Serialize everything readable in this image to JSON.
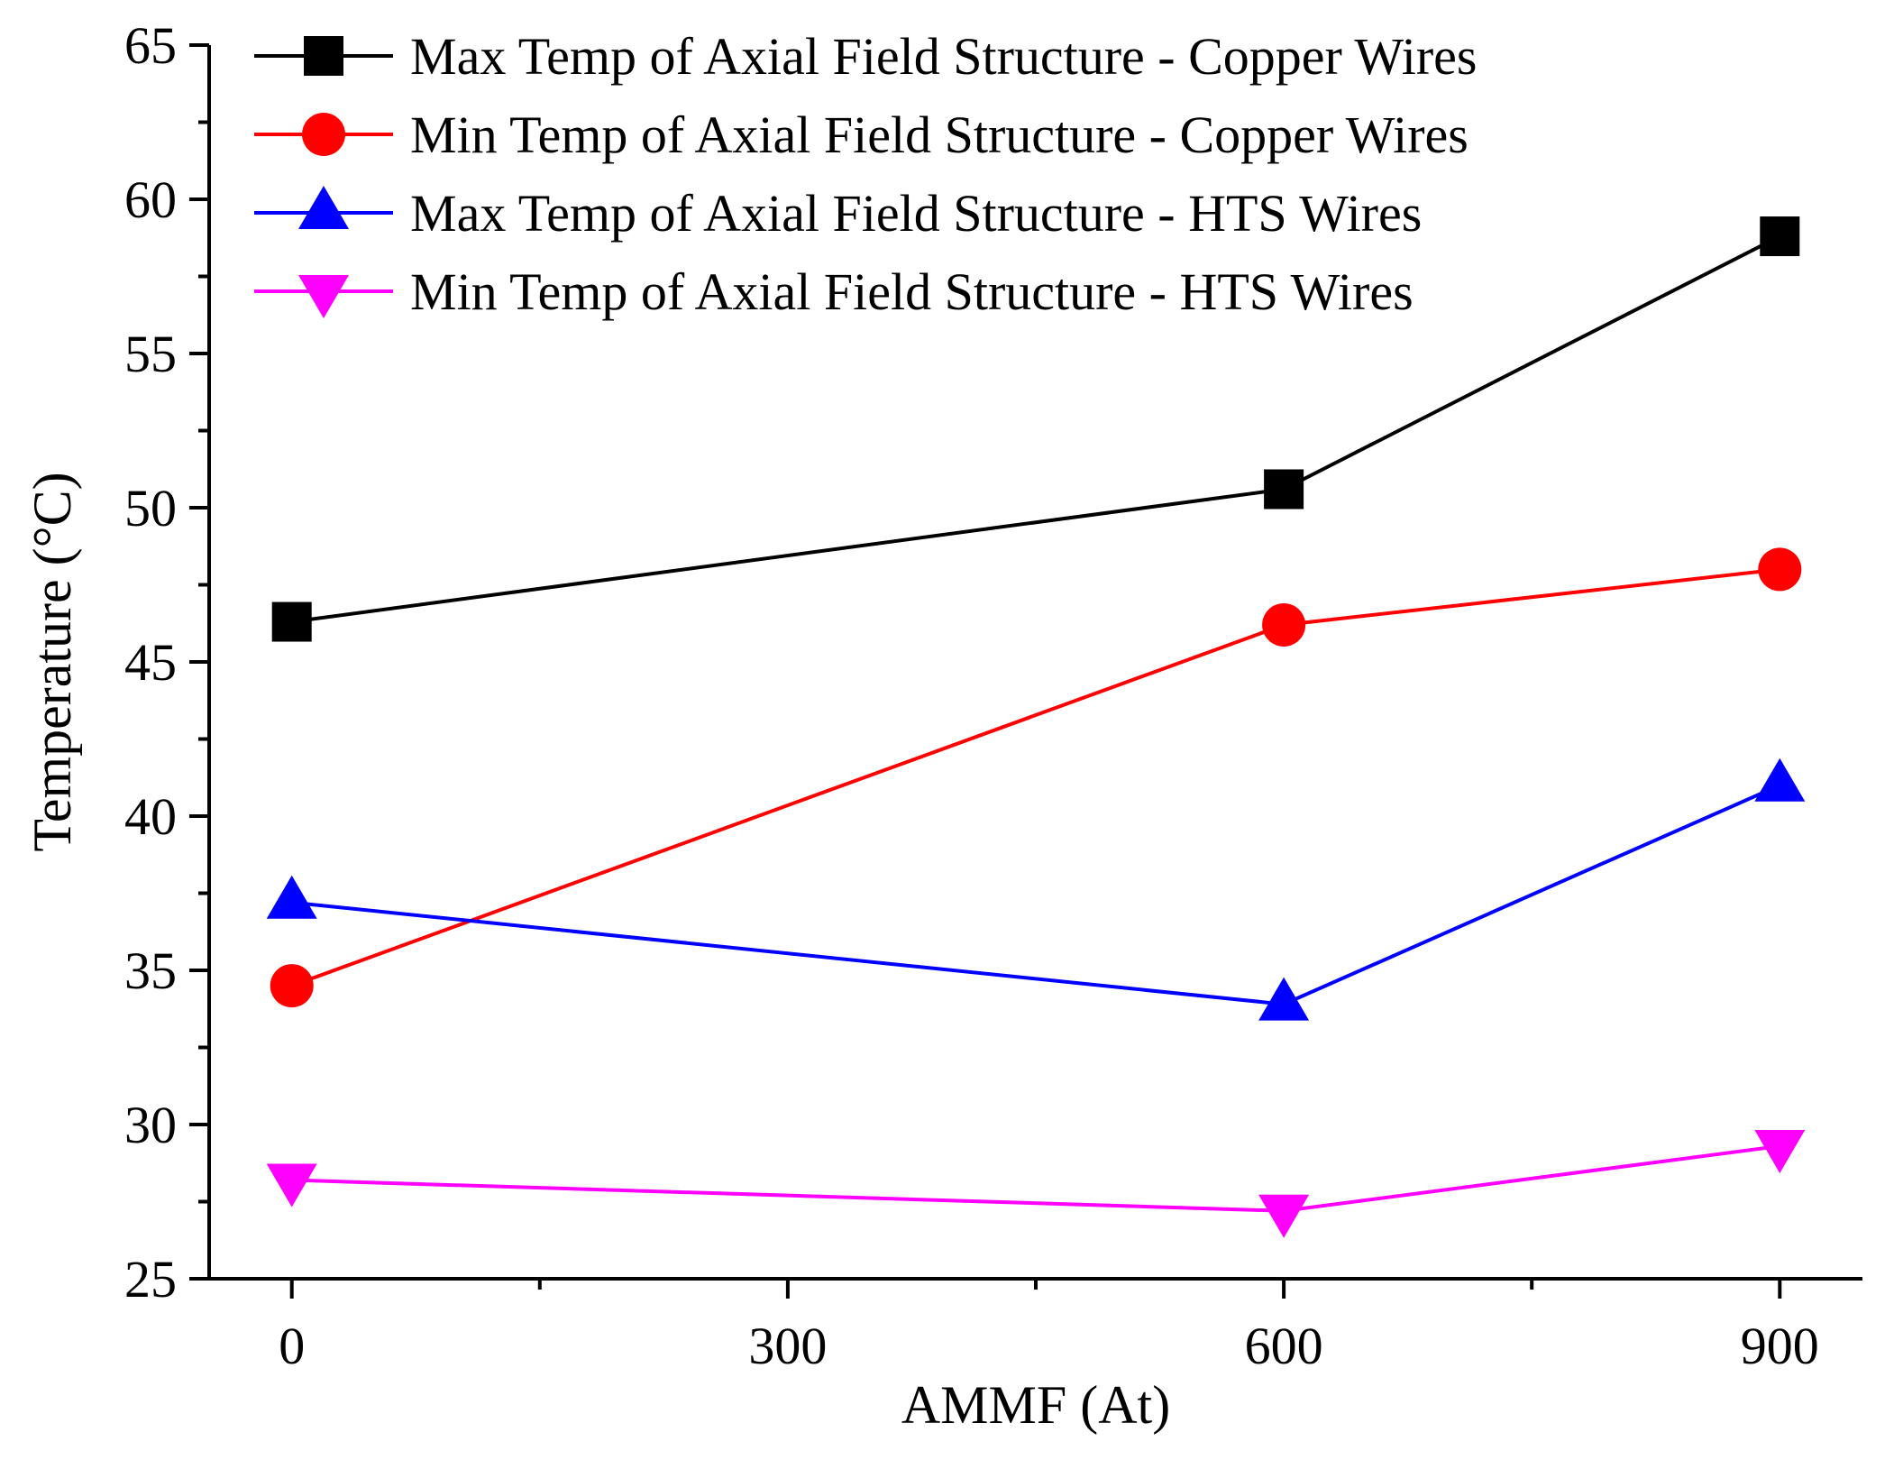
{
  "chart_data": {
    "type": "line",
    "title": "",
    "xlabel": "AMMF (At)",
    "ylabel": "Temperature (°C)",
    "x": [
      0,
      600,
      900
    ],
    "xlim": [
      -50,
      950
    ],
    "ylim": [
      25,
      65
    ],
    "xticks": [
      0,
      300,
      600,
      900
    ],
    "xtick_labels": [
      "0",
      "300",
      "600",
      "900"
    ],
    "xminor": [
      150,
      450,
      750
    ],
    "yticks": [
      25,
      30,
      35,
      40,
      45,
      50,
      55,
      60,
      65
    ],
    "ytick_labels": [
      "25",
      "30",
      "35",
      "40",
      "45",
      "50",
      "55",
      "60",
      "65"
    ],
    "yminor": [
      27.5,
      32.5,
      37.5,
      42.5,
      47.5,
      52.5,
      57.5,
      62.5
    ],
    "grid": false,
    "legend_position": "top-left",
    "series": [
      {
        "name": "Max Temp of Axial Field Structure - Copper Wires",
        "values": [
          46.3,
          50.6,
          58.8
        ],
        "color": "#000000",
        "marker": "square"
      },
      {
        "name": "Min Temp of Axial Field Structure - Copper Wires",
        "values": [
          34.5,
          46.2,
          48.0
        ],
        "color": "#ff0000",
        "marker": "circle"
      },
      {
        "name": "Max Temp of Axial Field Structure - HTS Wires",
        "values": [
          37.2,
          33.9,
          41.0
        ],
        "color": "#0000ff",
        "marker": "triangle-up"
      },
      {
        "name": "Min Temp of Axial Field Structure - HTS Wires",
        "values": [
          28.2,
          27.2,
          29.3
        ],
        "color": "#ff00ff",
        "marker": "triangle-down"
      }
    ]
  }
}
